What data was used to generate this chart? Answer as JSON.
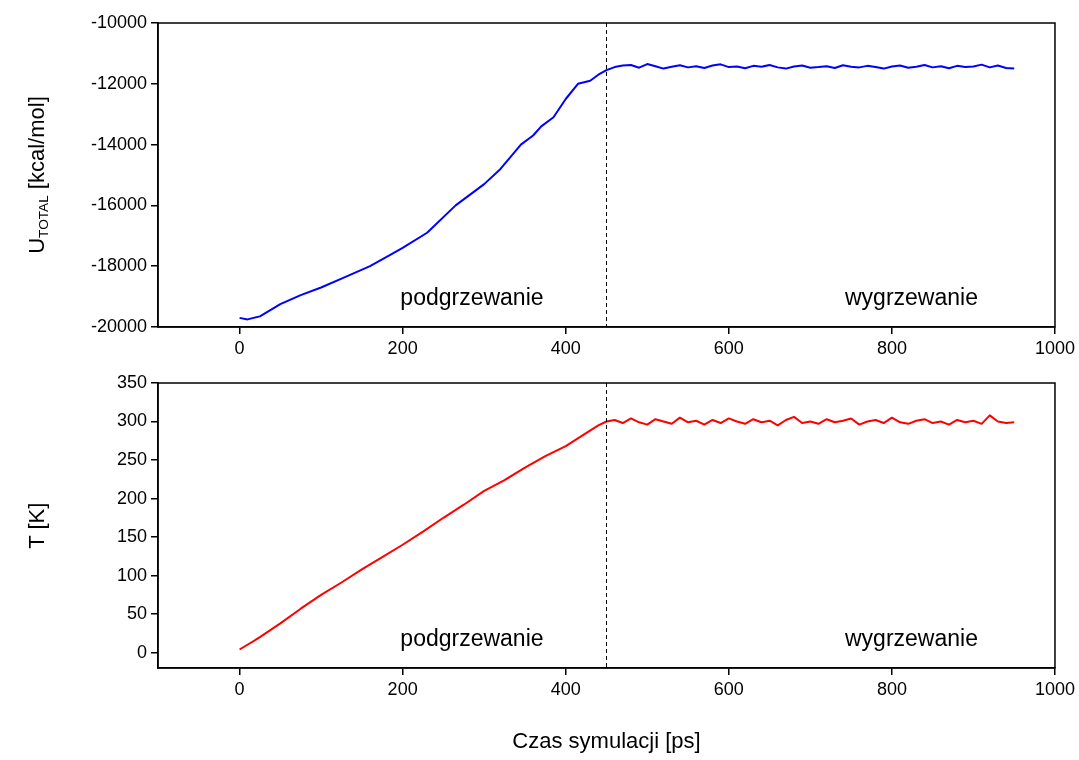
{
  "chart_data": [
    {
      "type": "line",
      "ylabel": "U$_{TOTAL}$ [kcal/mol]",
      "xlim": [
        -100,
        1000
      ],
      "xticks": [
        0,
        200,
        400,
        600,
        800,
        1000
      ],
      "ylim": [
        -20000,
        -10000
      ],
      "yticks": [
        -20000,
        -18000,
        -16000,
        -14000,
        -12000,
        -10000
      ],
      "legend": false,
      "marker": "none",
      "line_style": "solid",
      "annotations": [
        "podgrzewanie",
        "wygrzewanie"
      ],
      "ref_lines": [
        {
          "axis": "x",
          "value": 450,
          "color": "#000000",
          "line_style": "dashed"
        }
      ],
      "series": [
        {
          "color": "#0000ff",
          "x": [
            0,
            10,
            25,
            50,
            75,
            100,
            130,
            160,
            200,
            230,
            265,
            300,
            320,
            345,
            360,
            370,
            385,
            400,
            415,
            430,
            440,
            450,
            460,
            470,
            480,
            490,
            500,
            510,
            520,
            530,
            540,
            550,
            560,
            570,
            580,
            590,
            600,
            610,
            620,
            630,
            640,
            650,
            660,
            670,
            680,
            690,
            700,
            710,
            720,
            730,
            740,
            750,
            760,
            770,
            780,
            790,
            800,
            810,
            820,
            830,
            840,
            850,
            860,
            870,
            880,
            890,
            900,
            910,
            920,
            930,
            940,
            950
          ],
          "values": [
            -19700,
            -19750,
            -19650,
            -19250,
            -18950,
            -18700,
            -18350,
            -18000,
            -17400,
            -16900,
            -16000,
            -15300,
            -14800,
            -14000,
            -13700,
            -13400,
            -13100,
            -12500,
            -12000,
            -11900,
            -11700,
            -11550,
            -11450,
            -11400,
            -11380,
            -11470,
            -11350,
            -11420,
            -11500,
            -11440,
            -11390,
            -11460,
            -11420,
            -11480,
            -11400,
            -11360,
            -11450,
            -11430,
            -11490,
            -11410,
            -11440,
            -11380,
            -11460,
            -11500,
            -11430,
            -11400,
            -11470,
            -11450,
            -11420,
            -11480,
            -11390,
            -11440,
            -11460,
            -11410,
            -11450,
            -11500,
            -11430,
            -11400,
            -11470,
            -11440,
            -11380,
            -11460,
            -11420,
            -11490,
            -11410,
            -11450,
            -11430,
            -11370,
            -11460,
            -11400,
            -11480,
            -11500
          ]
        }
      ]
    },
    {
      "type": "line",
      "xlabel": "Czas symulacji [ps]",
      "ylabel": "T [K]",
      "xlim": [
        -100,
        1000
      ],
      "xticks": [
        0,
        200,
        400,
        600,
        800,
        1000
      ],
      "ylim": [
        -20,
        350
      ],
      "yticks": [
        0,
        50,
        100,
        150,
        200,
        250,
        300,
        350
      ],
      "legend": false,
      "marker": "none",
      "line_style": "solid",
      "annotations": [
        "podgrzewanie",
        "wygrzewanie"
      ],
      "ref_lines": [
        {
          "axis": "x",
          "value": 450,
          "color": "#000000",
          "line_style": "dashed"
        }
      ],
      "series": [
        {
          "color": "#ff0000",
          "x": [
            0,
            25,
            50,
            75,
            100,
            125,
            150,
            175,
            200,
            225,
            250,
            275,
            300,
            325,
            350,
            375,
            400,
            425,
            440,
            450,
            460,
            470,
            480,
            490,
            500,
            510,
            520,
            530,
            540,
            550,
            560,
            570,
            580,
            590,
            600,
            610,
            620,
            630,
            640,
            650,
            660,
            670,
            680,
            690,
            700,
            710,
            720,
            730,
            740,
            750,
            760,
            770,
            780,
            790,
            800,
            810,
            820,
            830,
            840,
            850,
            860,
            870,
            880,
            890,
            900,
            910,
            920,
            930,
            940,
            950
          ],
          "values": [
            4,
            20,
            38,
            57,
            75,
            91,
            108,
            124,
            140,
            157,
            175,
            192,
            210,
            224,
            240,
            255,
            268,
            285,
            295,
            300,
            302,
            298,
            304,
            299,
            296,
            303,
            300,
            297,
            305,
            299,
            301,
            296,
            302,
            298,
            304,
            300,
            297,
            303,
            299,
            301,
            295,
            302,
            306,
            298,
            300,
            297,
            303,
            299,
            301,
            304,
            296,
            300,
            302,
            298,
            305,
            299,
            297,
            301,
            303,
            298,
            300,
            296,
            302,
            299,
            301,
            297,
            308,
            300,
            298,
            299
          ]
        }
      ]
    }
  ]
}
